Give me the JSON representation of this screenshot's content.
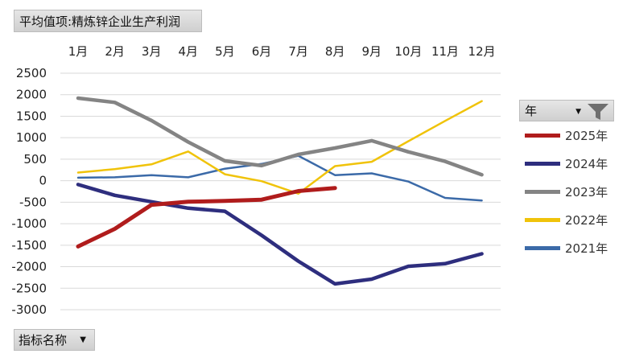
{
  "value_field_label": "平均值项:精炼锌企业生产利润",
  "row_field_label": "指标名称",
  "legend_field_label": "年",
  "dropdown_icon": "dropdown-arrow-icon",
  "filter_icon": "funnel-filter-icon",
  "chart_data": {
    "type": "line",
    "categories": [
      "1月",
      "2月",
      "3月",
      "4月",
      "5月",
      "6月",
      "7月",
      "8月",
      "9月",
      "10月",
      "11月",
      "12月"
    ],
    "ylim": [
      -3000,
      2500
    ],
    "yticks": [
      2500,
      2000,
      1500,
      1000,
      500,
      0,
      -500,
      -1000,
      -1500,
      -2000,
      -2500,
      -3000
    ],
    "grid": true,
    "legend_position": "right",
    "series": [
      {
        "name": "2025年",
        "color": "#b01c1c",
        "width": 5,
        "values": [
          -1530,
          -1120,
          -560,
          -490,
          -470,
          -440,
          -240,
          -170,
          null,
          null,
          null,
          null
        ]
      },
      {
        "name": "2024年",
        "color": "#2e2e7e",
        "width": 4.5,
        "values": [
          -90,
          -340,
          -490,
          -640,
          -710,
          -1270,
          -1870,
          -2400,
          -2290,
          -1990,
          -1930,
          -1700
        ]
      },
      {
        "name": "2023年",
        "color": "#848484",
        "width": 4.5,
        "values": [
          1920,
          1820,
          1400,
          900,
          460,
          350,
          610,
          760,
          930,
          670,
          450,
          140
        ]
      },
      {
        "name": "2022年",
        "color": "#f0c30a",
        "width": 2.5,
        "values": [
          190,
          270,
          380,
          680,
          150,
          -10,
          -300,
          340,
          440,
          920,
          1390,
          1850
        ]
      },
      {
        "name": "2021年",
        "color": "#3b6aa8",
        "width": 2.5,
        "values": [
          70,
          80,
          130,
          80,
          280,
          390,
          580,
          130,
          170,
          -20,
          -400,
          -460
        ]
      }
    ]
  }
}
